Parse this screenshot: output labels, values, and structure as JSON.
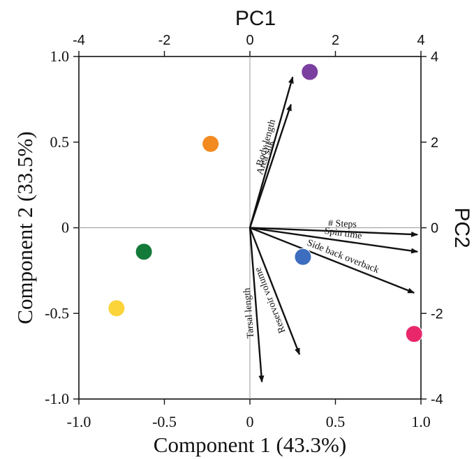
{
  "chart_data": {
    "type": "scatter",
    "title": "",
    "xlabel": "Component 1 (43.3%)",
    "ylabel": "Component 2 (33.5%)",
    "top_label": "PC1",
    "right_label": "PC2",
    "xlim": [
      -1.0,
      1.0
    ],
    "ylim": [
      -1.0,
      1.0
    ],
    "top_lim": [
      -4,
      4
    ],
    "right_lim": [
      -4,
      4
    ],
    "x_ticks": [
      "-1.0",
      "-0.5",
      "0",
      "0.5",
      "1.0"
    ],
    "y_ticks": [
      "-1.0",
      "-0.5",
      "0",
      "0.5",
      "1.0"
    ],
    "top_ticks": [
      "-4",
      "-2",
      "0",
      "2",
      "4"
    ],
    "right_ticks": [
      "-4",
      "-2",
      "0",
      "2",
      "4"
    ],
    "zero_lines": true,
    "grid": false,
    "legend": "none",
    "points": [
      {
        "x": 0.35,
        "y": 0.91,
        "color": "#7B3FA0"
      },
      {
        "x": -0.23,
        "y": 0.49,
        "color": "#F28A1F"
      },
      {
        "x": -0.62,
        "y": -0.14,
        "color": "#137A3A"
      },
      {
        "x": -0.78,
        "y": -0.47,
        "color": "#FAD439"
      },
      {
        "x": 0.31,
        "y": -0.17,
        "color": "#3D6DBF"
      },
      {
        "x": 0.96,
        "y": -0.62,
        "color": "#E9286B"
      }
    ],
    "vectors": [
      {
        "label": "Body length",
        "x": 0.25,
        "y": 0.88
      },
      {
        "label": "Area silk",
        "x": 0.24,
        "y": 0.72
      },
      {
        "label": "# Steps",
        "x": 0.98,
        "y": -0.04
      },
      {
        "label": "Spin time",
        "x": 0.98,
        "y": -0.14
      },
      {
        "label": "Side back overback",
        "x": 0.96,
        "y": -0.38
      },
      {
        "label": "Reservoir volume",
        "x": 0.29,
        "y": -0.74
      },
      {
        "label": "Tarsal length",
        "x": 0.07,
        "y": -0.9
      }
    ]
  }
}
